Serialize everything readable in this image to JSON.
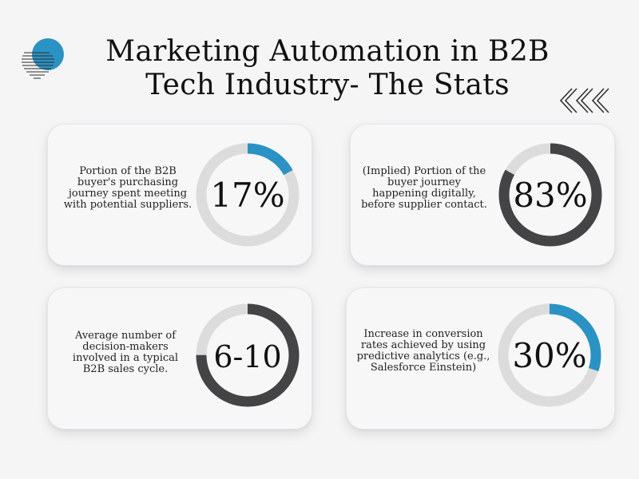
{
  "title": {
    "line1": "Marketing Automation in B2B",
    "line2": "Tech Industry- The Stats"
  },
  "decorations": {
    "logo_icon": "striped-circle-logo-icon",
    "arrows_icon": "triple-chevron-left-icon"
  },
  "colors": {
    "accent": "#2b93c4",
    "dark": "#444446",
    "track": "#dcdcdc",
    "background": "#f5f5f6"
  },
  "stats": [
    {
      "description": [
        "Portion of the B2B",
        "buyer's purchasing",
        "journey spent meeting",
        "with potential suppliers."
      ],
      "value": "17%",
      "fill_fraction": 0.17,
      "fill_color": "accent"
    },
    {
      "description": [
        "(Implied) Portion of the",
        "buyer journey",
        "happening digitally,",
        "before supplier contact."
      ],
      "value": "83%",
      "fill_fraction": 0.83,
      "fill_color": "dark"
    },
    {
      "description": [
        "Average number of",
        "decision-makers",
        "involved in a typical",
        "B2B sales cycle."
      ],
      "value": "6-10",
      "fill_fraction": 0.75,
      "fill_color": "dark"
    },
    {
      "description": [
        "Increase in conversion",
        "rates achieved by using",
        "predictive analytics (e.g.,",
        "Salesforce Einstein)"
      ],
      "value": "30%",
      "fill_fraction": 0.3,
      "fill_color": "accent"
    }
  ]
}
